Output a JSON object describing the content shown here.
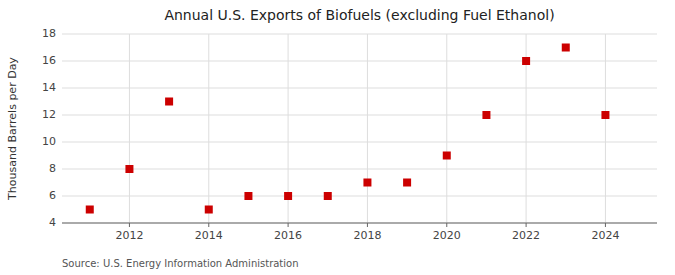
{
  "chart_data": {
    "type": "scatter",
    "title": "Annual U.S. Exports of Biofuels (excluding Fuel Ethanol)",
    "y_label": "Thousand Barrels per Day",
    "annotations": [
      "Source: U.S. Energy Information Administration"
    ],
    "x": [
      2011,
      2012,
      2013,
      2014,
      2015,
      2016,
      2017,
      2018,
      2019,
      2020,
      2021,
      2022,
      2023,
      2024
    ],
    "values": [
      5,
      8,
      13,
      5,
      6,
      6,
      6,
      7,
      7,
      9,
      12,
      16,
      17,
      12
    ],
    "xlim": [
      2010.3,
      2025.3
    ],
    "xticks": [
      2012,
      2014,
      2016,
      2018,
      2020,
      2022,
      2024
    ],
    "ylim": [
      4,
      18
    ],
    "yticks": [
      4,
      6,
      8,
      10,
      12,
      14,
      16,
      18
    ],
    "color": "#cc0000",
    "marker": "square",
    "grid": true
  }
}
